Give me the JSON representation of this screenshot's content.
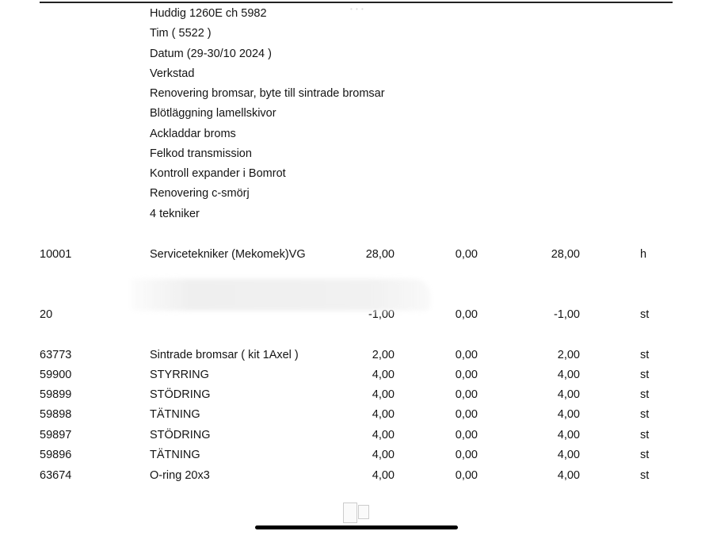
{
  "header_lines": [
    "Huddig 1260E ch 5982",
    "Tim ( 5522 )",
    "Datum (29-30/10 2024 )",
    "Verkstad",
    "Renovering bromsar, byte till sintrade bromsar",
    "Blötläggning lamellskivor",
    "Ackladdar broms",
    "Felkod transmission",
    "Kontroll expander i Bomrot",
    "Renovering c-smörj",
    "4 tekniker"
  ],
  "rows": [
    {
      "code": "10001",
      "desc": "Servicetekniker (Mekomek)VG",
      "qty": "28,00",
      "v2": "0,00",
      "v3": "28,00",
      "unit": "h"
    },
    {
      "code": "20",
      "desc": "",
      "qty": "-1,00",
      "v2": "0,00",
      "v3": "-1,00",
      "unit": "st"
    },
    {
      "code": "63773",
      "desc": "Sintrade bromsar ( kit 1Axel )",
      "qty": "2,00",
      "v2": "0,00",
      "v3": "2,00",
      "unit": "st"
    },
    {
      "code": "59900",
      "desc": "STYRRING",
      "qty": "4,00",
      "v2": "0,00",
      "v3": "4,00",
      "unit": "st"
    },
    {
      "code": "59899",
      "desc": "STÖDRING",
      "qty": "4,00",
      "v2": "0,00",
      "v3": "4,00",
      "unit": "st"
    },
    {
      "code": "59898",
      "desc": "TÄTNING",
      "qty": "4,00",
      "v2": "0,00",
      "v3": "4,00",
      "unit": "st"
    },
    {
      "code": "59897",
      "desc": "STÖDRING",
      "qty": "4,00",
      "v2": "0,00",
      "v3": "4,00",
      "unit": "st"
    },
    {
      "code": "59896",
      "desc": "TÄTNING",
      "qty": "4,00",
      "v2": "0,00",
      "v3": "4,00",
      "unit": "st"
    },
    {
      "code": "63674",
      "desc": "O-ring 20x3",
      "qty": "4,00",
      "v2": "0,00",
      "v3": "4,00",
      "unit": "st"
    }
  ]
}
